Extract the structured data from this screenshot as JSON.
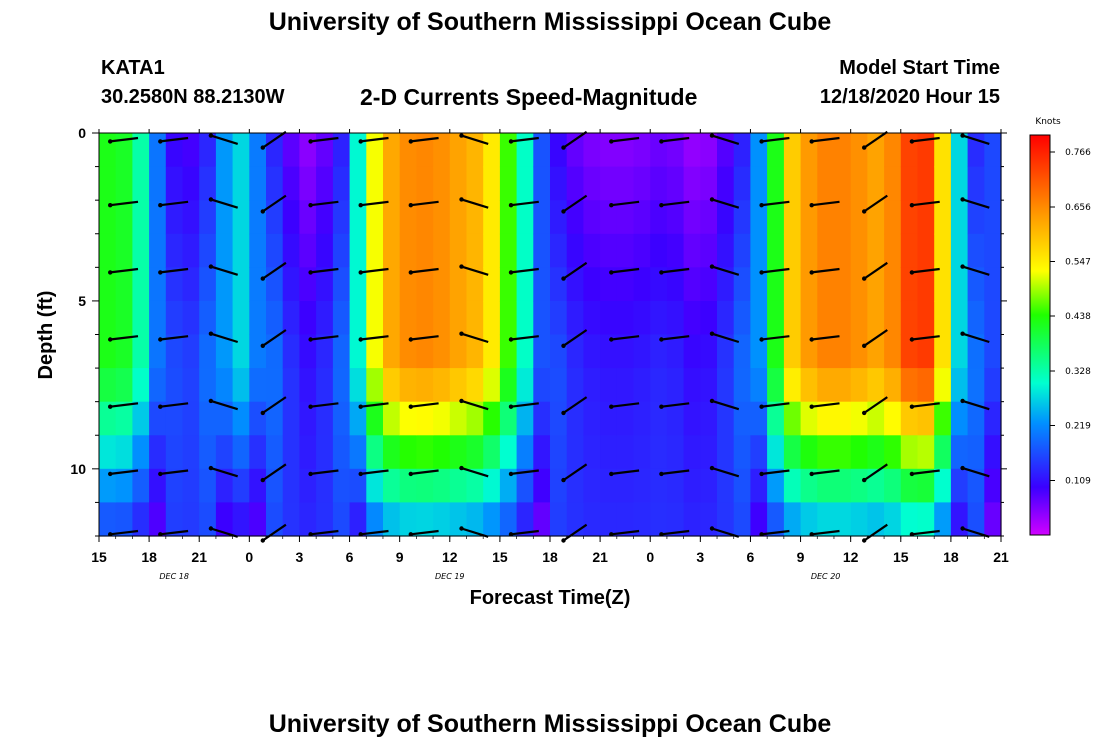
{
  "header": {
    "title": "University of Southern Mississippi Ocean Cube",
    "station": "KATA1",
    "coords": "30.2580N 88.2130W",
    "subtitle": "2-D Currents Speed-Magnitude",
    "model_start_label": "Model Start Time",
    "model_start_value": "12/18/2020 Hour 15"
  },
  "footer": {
    "title": "University of Southern Mississippi Ocean Cube"
  },
  "chart_data": {
    "type": "heatmap",
    "title": "2-D Currents Speed-Magnitude",
    "xlabel": "Forecast Time(Z)",
    "ylabel": "Depth (ft)",
    "x_ticks": [
      "15",
      "18",
      "21",
      "0",
      "3",
      "6",
      "9",
      "12",
      "15",
      "18",
      "21",
      "0",
      "3",
      "6",
      "9",
      "12",
      "15",
      "18",
      "21"
    ],
    "x_range_hours": [
      0,
      54
    ],
    "day_labels": [
      {
        "text": "DEC 18",
        "hour": 4.5
      },
      {
        "text": "DEC 19",
        "hour": 21
      },
      {
        "text": "DEC 20",
        "hour": 43.5
      }
    ],
    "y_ticks": [
      0,
      5,
      10
    ],
    "y_range_ft": [
      0,
      12
    ],
    "y_direction": "downward",
    "colorbar": {
      "unit": "Knots",
      "min": 0.0,
      "max": 0.8,
      "labels": [
        "0.766",
        "0.656",
        "0.547",
        "0.438",
        "0.328",
        "0.219",
        "0.109"
      ]
    },
    "speed_profile": {
      "hours": [
        0,
        1,
        2,
        3,
        4,
        5,
        6,
        7,
        8,
        9,
        10,
        11,
        12,
        13,
        14,
        15,
        16,
        17,
        18,
        19,
        20,
        21,
        22,
        23,
        24,
        25,
        26,
        27,
        28,
        29,
        30,
        31,
        32,
        33,
        34,
        35,
        36,
        37,
        38,
        39,
        40,
        41,
        42,
        43,
        44,
        45,
        46,
        47,
        48,
        49,
        50,
        51,
        52,
        53,
        54
      ],
      "surface_knots": [
        0.4,
        0.45,
        0.38,
        0.28,
        0.12,
        0.08,
        0.1,
        0.16,
        0.3,
        0.25,
        0.16,
        0.1,
        0.05,
        0.04,
        0.1,
        0.15,
        0.45,
        0.6,
        0.65,
        0.66,
        0.66,
        0.64,
        0.62,
        0.6,
        0.5,
        0.4,
        0.22,
        0.12,
        0.08,
        0.06,
        0.05,
        0.05,
        0.05,
        0.06,
        0.07,
        0.05,
        0.03,
        0.06,
        0.1,
        0.15,
        0.3,
        0.55,
        0.62,
        0.66,
        0.67,
        0.66,
        0.64,
        0.62,
        0.7,
        0.76,
        0.72,
        0.4,
        0.15,
        0.12,
        0.2
      ]
    },
    "vector_rows_ft": [
      0.2,
      2.1,
      4.1,
      6.1,
      8.1,
      10.1,
      11.9
    ],
    "vector_columns_hours": [
      1.5,
      4.5,
      7.5,
      10.5,
      13.5,
      16.5,
      19.5,
      22.5,
      25.5,
      28.5,
      31.5,
      34.5,
      37.5,
      40.5,
      43.5,
      46.5,
      49.5,
      52.5
    ]
  }
}
